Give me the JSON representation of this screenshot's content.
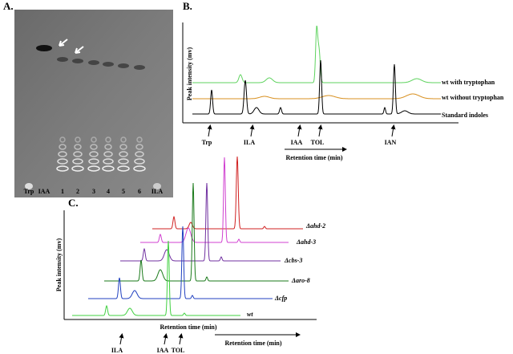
{
  "panels": [
    {
      "label": "A.",
      "lanes": [
        "Trp",
        "IAA",
        "1",
        "2",
        "3",
        "4",
        "5",
        "6",
        "ILA"
      ]
    },
    {
      "label": "B.",
      "y_axis": "Peak intensity (mv)",
      "x_axis": "Retention time (min)",
      "traces": [
        "wt with tryptophan",
        "wt without tryptophan",
        "Standard indoles"
      ],
      "markers": [
        "Trp",
        "ILA",
        "IAA",
        "TOL",
        "IAN"
      ]
    },
    {
      "label": "C.",
      "y_axis": "Peak intensity (mv)",
      "x_axis": "Retention time (min)",
      "traces": [
        "Δahd-2",
        "Δahd-3",
        "Δcbs-3",
        "Δaro-8",
        "Δcfp",
        "wt"
      ],
      "markers": [
        "ILA",
        "IAA",
        "TOL"
      ],
      "x_axis_arrow": "Retention time (min)"
    }
  ]
}
